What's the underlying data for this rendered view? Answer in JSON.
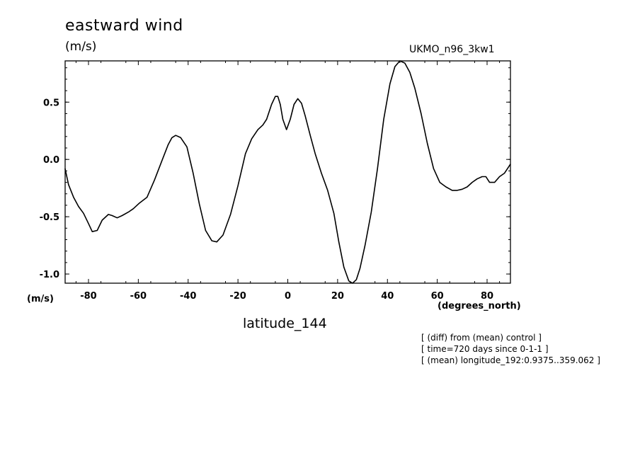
{
  "header": {
    "title": "eastward wind",
    "units": "(m/s)",
    "model": "UKMO_n96_3kw1"
  },
  "footer": {
    "notes": [
      "[ (diff) from (mean) control ]",
      "[ time=720 days since 0-1-1 ]",
      "[ (mean) longitude_192:0.9375..359.062 ]"
    ]
  },
  "chart_data": {
    "type": "line",
    "title": "eastward wind",
    "xlabel": "latitude_144",
    "xunit": "(degrees_north)",
    "ylabel": "(m/s)",
    "xlim": [
      -89.375,
      89.375
    ],
    "ylim": [
      -1.08,
      0.86
    ],
    "xticks": [
      -80,
      -60,
      -40,
      -20,
      0,
      20,
      40,
      60,
      80
    ],
    "xtick_labels": [
      "-80",
      "-60",
      "-40",
      "-20",
      "0",
      "20",
      "40",
      "60",
      "80"
    ],
    "yticks": [
      -1.0,
      -0.5,
      0.0,
      0.5
    ],
    "ytick_labels": [
      "-1.0",
      "-0.5",
      "0.0",
      "0.5"
    ],
    "grid": false,
    "series": [
      {
        "x": [
          -89.4,
          -88.0,
          -86.0,
          -84.0,
          -82.0,
          -80.0,
          -78.5,
          -76.5,
          -74.5,
          -72.0,
          -70.5,
          -68.5,
          -66.5,
          -64.0,
          -62.0,
          -59.5,
          -56.5,
          -53.5,
          -50.5,
          -48.0,
          -46.5,
          -45.0,
          -43.0,
          -40.5,
          -38.0,
          -35.5,
          -33.0,
          -30.5,
          -28.5,
          -26.0,
          -23.0,
          -20.0,
          -17.0,
          -14.5,
          -12.0,
          -10.0,
          -8.5,
          -6.5,
          -5.0,
          -4.0,
          -3.0,
          -2.0,
          -0.5,
          1.0,
          2.5,
          4.0,
          5.5,
          7.0,
          9.0,
          11.0,
          13.5,
          16.0,
          18.5,
          20.5,
          22.5,
          24.5,
          26.0,
          27.5,
          29.0,
          31.0,
          33.5,
          36.0,
          38.5,
          41.0,
          43.0,
          45.0,
          47.0,
          49.0,
          51.0,
          53.5,
          56.0,
          58.5,
          61.0,
          63.5,
          66.0,
          68.0,
          70.0,
          72.0,
          74.0,
          76.0,
          78.0,
          79.5,
          81.0,
          83.0,
          85.0,
          87.0,
          89.4
        ],
        "y": [
          -0.08,
          -0.22,
          -0.33,
          -0.41,
          -0.47,
          -0.56,
          -0.63,
          -0.62,
          -0.53,
          -0.48,
          -0.49,
          -0.51,
          -0.49,
          -0.46,
          -0.43,
          -0.38,
          -0.33,
          -0.18,
          -0.01,
          0.13,
          0.19,
          0.21,
          0.19,
          0.11,
          -0.12,
          -0.39,
          -0.62,
          -0.71,
          -0.72,
          -0.66,
          -0.48,
          -0.23,
          0.05,
          0.18,
          0.26,
          0.3,
          0.35,
          0.48,
          0.55,
          0.55,
          0.48,
          0.35,
          0.26,
          0.35,
          0.48,
          0.53,
          0.49,
          0.38,
          0.21,
          0.05,
          -0.12,
          -0.27,
          -0.47,
          -0.72,
          -0.94,
          -1.06,
          -1.08,
          -1.05,
          -0.95,
          -0.75,
          -0.46,
          -0.08,
          0.35,
          0.66,
          0.81,
          0.86,
          0.84,
          0.76,
          0.62,
          0.4,
          0.14,
          -0.08,
          -0.2,
          -0.24,
          -0.27,
          -0.27,
          -0.26,
          -0.24,
          -0.2,
          -0.17,
          -0.15,
          -0.15,
          -0.2,
          -0.2,
          -0.15,
          -0.12,
          -0.04
        ]
      }
    ]
  }
}
